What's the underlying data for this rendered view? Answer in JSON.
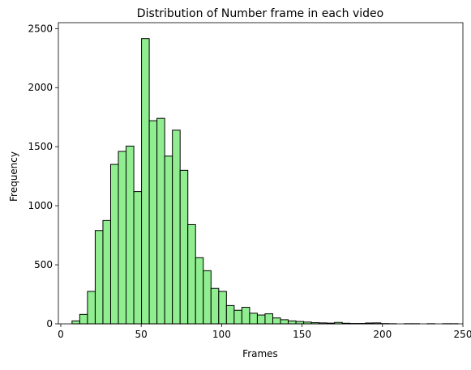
{
  "chart_data": {
    "type": "bar",
    "title": "Distribution of Number frame in each video",
    "xlabel": "Frames",
    "ylabel": "Frequency",
    "bar_color": "#90EE90",
    "edge_color": "#000000",
    "xlim": [
      -1.5,
      250
    ],
    "ylim": [
      0,
      2550
    ],
    "xticks": [
      0,
      50,
      100,
      150,
      200,
      250
    ],
    "yticks": [
      0,
      500,
      1000,
      1500,
      2000,
      2500
    ],
    "bin_start": 7,
    "bin_width": 4.8,
    "values": [
      25,
      80,
      275,
      790,
      875,
      1350,
      1460,
      1505,
      1120,
      2415,
      1720,
      1740,
      1420,
      1640,
      1300,
      840,
      560,
      450,
      300,
      275,
      155,
      115,
      140,
      90,
      75,
      85,
      50,
      35,
      25,
      20,
      15,
      10,
      8,
      6,
      12,
      5,
      3,
      3,
      7,
      8,
      2,
      1,
      0,
      1,
      1,
      0,
      1,
      0,
      1,
      1
    ]
  }
}
